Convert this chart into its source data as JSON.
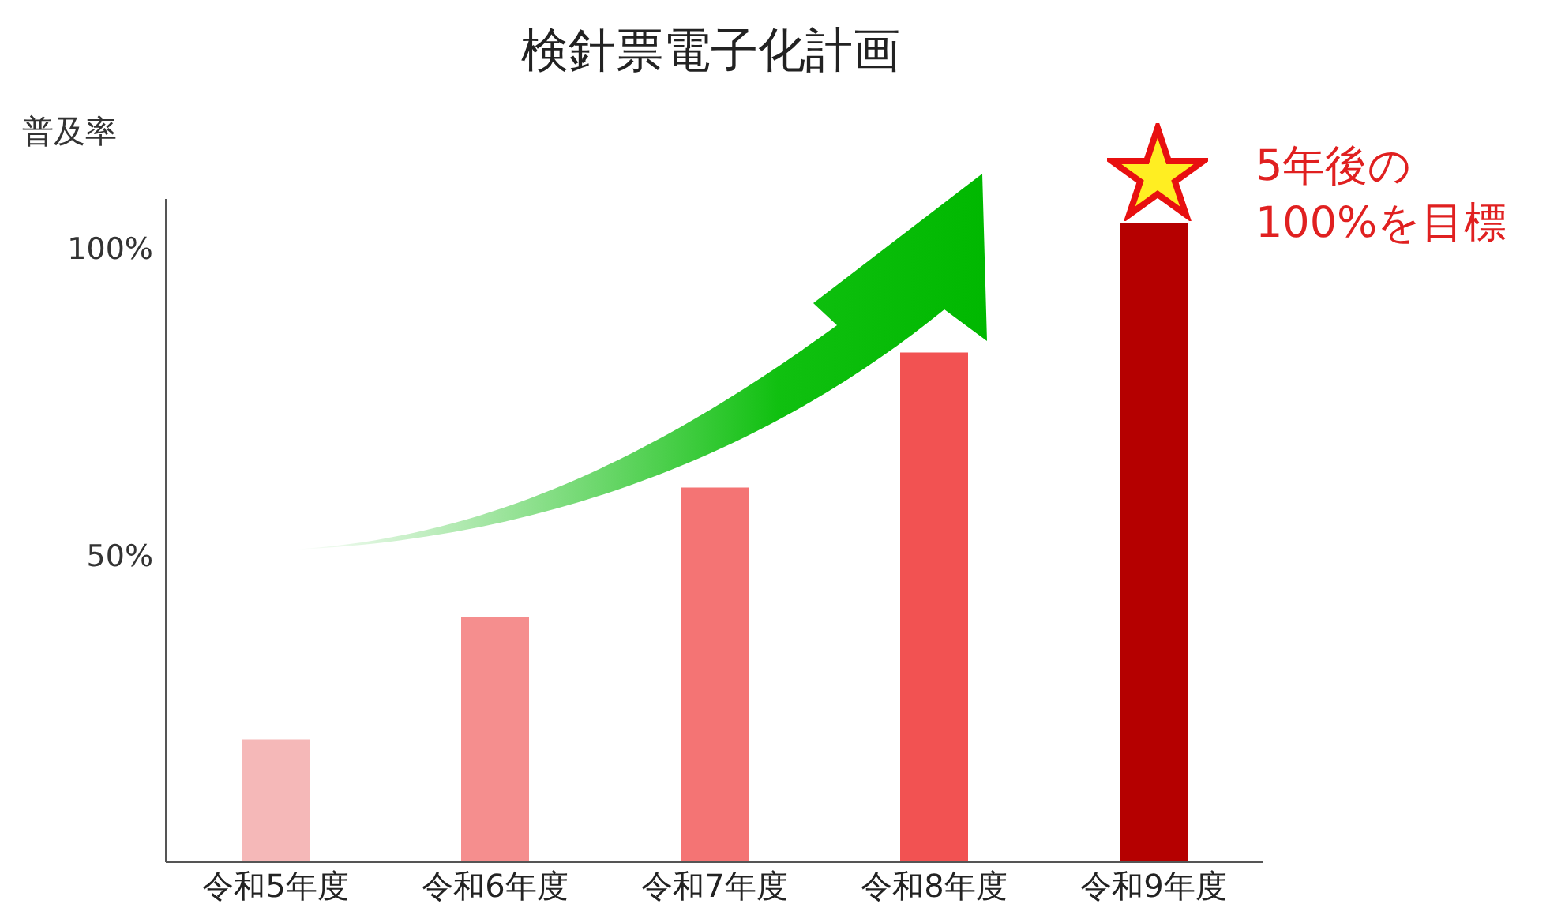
{
  "chart_data": {
    "type": "bar",
    "title": "検針票電子化計画",
    "ylabel": "普及率",
    "categories": [
      "令和5年度",
      "令和6年度",
      "令和7年度",
      "令和8年度",
      "令和9年度"
    ],
    "values": [
      20,
      40,
      61,
      83,
      104
    ],
    "colors": [
      "#f5b8b8",
      "#f58e8e",
      "#f47474",
      "#f25252",
      "#b50000"
    ],
    "ylim": [
      0,
      108
    ],
    "yticks": [
      {
        "value": 50,
        "label": "50%"
      },
      {
        "value": 100,
        "label": "100%"
      }
    ],
    "grid": false,
    "legend": false,
    "annotations": [
      "5年後の\n100%を目標"
    ]
  }
}
